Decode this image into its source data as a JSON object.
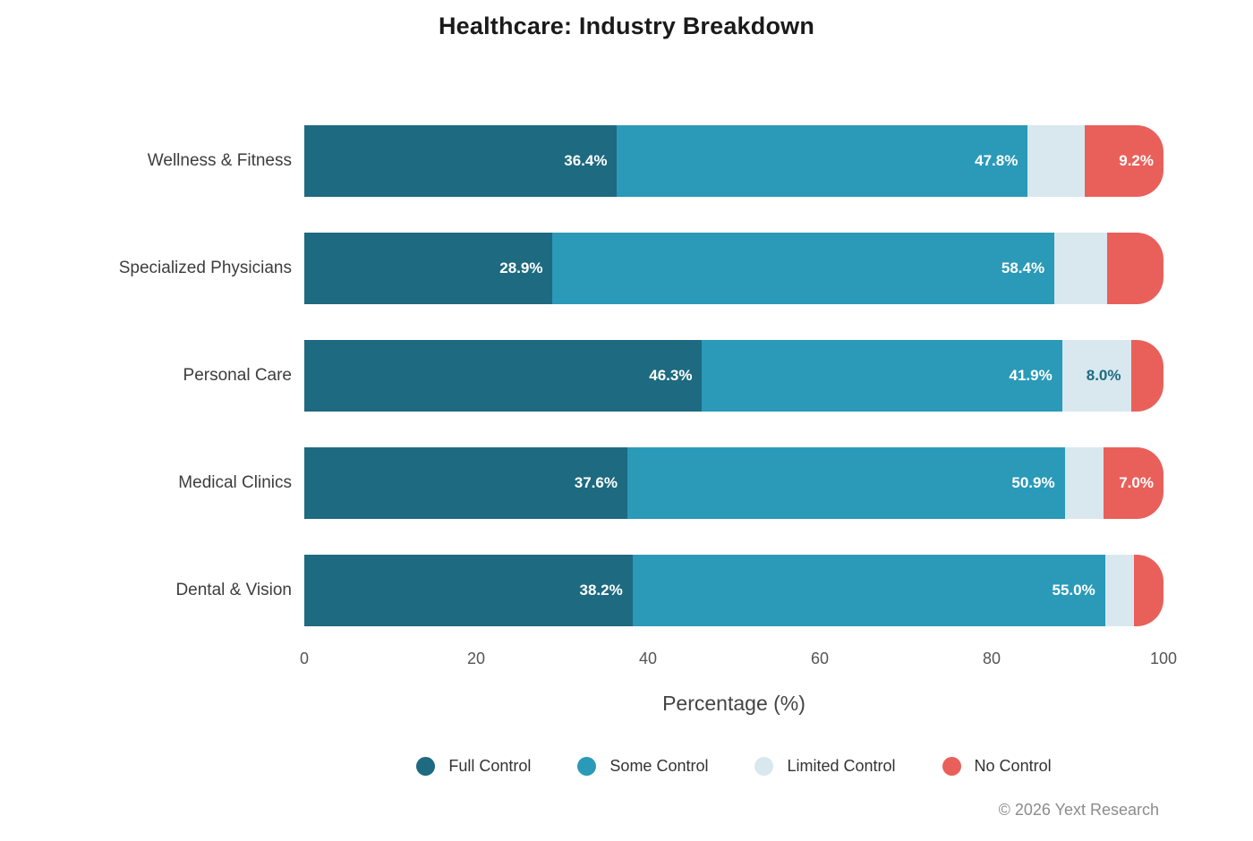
{
  "title": "Healthcare: Industry Breakdown",
  "footer": "© 2026 Yext Research",
  "chart_data": {
    "type": "bar",
    "subtype": "horizontal-stacked",
    "title": "Healthcare: Industry Breakdown",
    "xlabel": "Percentage (%)",
    "ylabel": "",
    "xlim": [
      0,
      100
    ],
    "x_ticks": [
      0,
      20,
      40,
      60,
      80,
      100
    ],
    "grid": false,
    "legend_position": "bottom-center",
    "categories": [
      "Wellness & Fitness",
      "Specialized Physicians",
      "Personal Care",
      "Medical Clinics",
      "Dental & Vision"
    ],
    "series": [
      {
        "name": "Full Control",
        "color": "#1e6a80",
        "label_color": "#ffffff",
        "values": [
          36.4,
          28.9,
          46.3,
          37.6,
          38.2
        ],
        "labels": [
          "36.4%",
          "28.9%",
          "46.3%",
          "37.6%",
          "38.2%"
        ]
      },
      {
        "name": "Some Control",
        "color": "#2a9ab8",
        "label_color": "#ffffff",
        "values": [
          47.8,
          58.4,
          41.9,
          50.9,
          55.0
        ],
        "labels": [
          "47.8%",
          "58.4%",
          "41.9%",
          "50.9%",
          "55.0%"
        ]
      },
      {
        "name": "Limited Control",
        "color": "#d8e8ee",
        "label_color": "#1e6a80",
        "values": [
          6.6,
          6.1,
          8.0,
          4.5,
          3.4
        ],
        "labels": [
          "",
          "",
          "8.0%",
          "",
          ""
        ]
      },
      {
        "name": "No Control",
        "color": "#e9605a",
        "label_color": "#ffffff",
        "values": [
          9.2,
          6.6,
          3.8,
          7.0,
          3.4
        ],
        "labels": [
          "9.2%",
          "",
          "",
          "7.0%",
          ""
        ]
      }
    ],
    "footer": "© 2026 Yext Research"
  }
}
